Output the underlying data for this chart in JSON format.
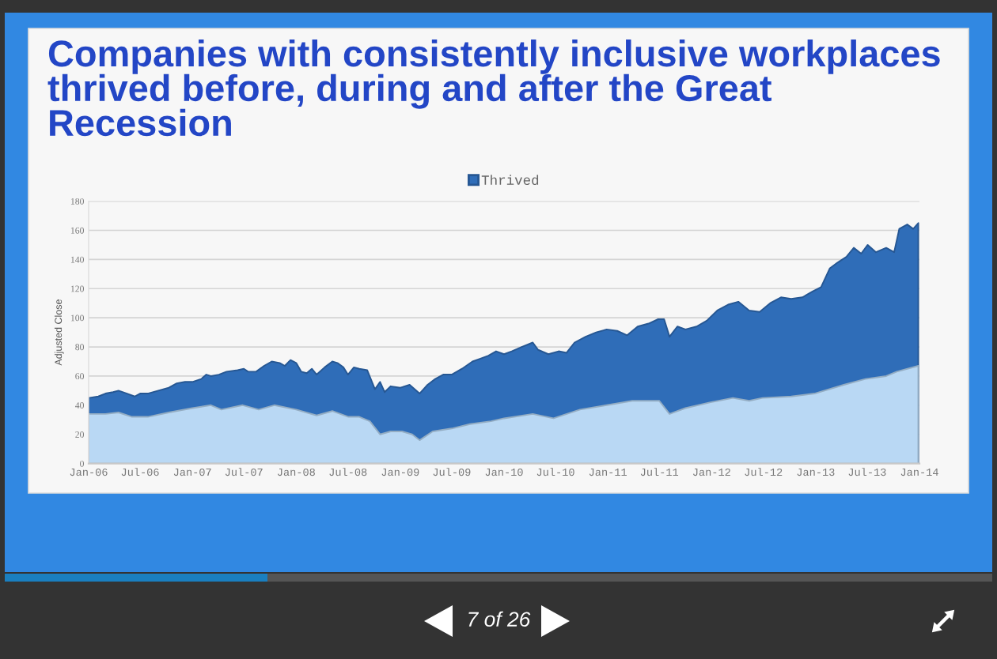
{
  "chart_data": {
    "type": "area",
    "title": "Companies with consistently inclusive workplaces thrived before, during and after the Great Recession",
    "ylabel": "Adjusted Close",
    "series": [
      {
        "name": "Thrived",
        "color": "#2f6db8",
        "x": [
          "2006-01-01",
          "2006-02-04",
          "2006-03-01",
          "2006-03-28",
          "2006-04-16",
          "2006-05-16",
          "2006-06-12",
          "2006-07-01",
          "2006-07-28",
          "2006-09-03",
          "2006-10-10",
          "2006-11-07",
          "2006-12-06",
          "2007-01-01",
          "2007-02-01",
          "2007-02-19",
          "2007-03-07",
          "2007-04-04",
          "2007-05-01",
          "2007-06-09",
          "2007-07-01",
          "2007-07-16",
          "2007-08-13",
          "2007-09-10",
          "2007-10-07",
          "2007-11-04",
          "2007-11-22",
          "2007-12-12",
          "2008-01-01",
          "2008-01-19",
          "2008-02-07",
          "2008-02-25",
          "2008-03-13",
          "2008-04-10",
          "2008-05-07",
          "2008-05-25",
          "2008-06-15",
          "2008-07-01",
          "2008-07-22",
          "2008-08-10",
          "2008-09-07",
          "2008-10-04",
          "2008-10-22",
          "2008-11-07",
          "2008-11-28",
          "2009-01-01",
          "2009-02-03",
          "2009-03-10",
          "2009-04-07",
          "2009-05-04",
          "2009-06-01",
          "2009-07-01",
          "2009-08-06",
          "2009-09-12",
          "2009-10-10",
          "2009-11-07",
          "2009-12-04",
          "2010-01-01",
          "2010-01-28",
          "2010-03-04",
          "2010-04-12",
          "2010-05-01",
          "2010-06-06",
          "2010-07-12",
          "2010-08-09",
          "2010-09-06",
          "2010-10-15",
          "2010-11-21",
          "2010-12-28",
          "2011-02-03",
          "2011-03-10",
          "2011-04-16",
          "2011-05-24",
          "2011-06-27",
          "2011-07-18",
          "2011-08-06",
          "2011-09-03",
          "2011-10-01",
          "2011-11-09",
          "2011-12-15",
          "2012-01-21",
          "2012-02-28",
          "2012-04-04",
          "2012-05-12",
          "2012-06-18",
          "2012-07-25",
          "2012-09-01",
          "2012-10-07",
          "2012-11-15",
          "2012-12-21",
          "2013-01-20",
          "2013-02-20",
          "2013-03-20",
          "2013-04-20",
          "2013-05-15",
          "2013-06-10",
          "2013-07-03",
          "2013-08-01",
          "2013-09-06",
          "2013-10-04",
          "2013-10-22",
          "2013-11-19",
          "2013-12-10",
          "2013-12-28"
        ],
        "values": [
          45,
          46,
          48,
          49,
          50,
          48,
          46,
          48,
          48,
          50,
          52,
          55,
          56,
          56,
          58,
          61,
          60,
          61,
          63,
          64,
          65,
          63,
          63,
          67,
          70,
          69,
          67,
          71,
          69,
          63,
          62,
          65,
          61,
          66,
          70,
          69,
          66,
          61,
          66,
          65,
          64,
          51,
          56,
          49,
          53,
          52,
          54,
          48,
          54,
          58,
          61,
          61,
          65,
          70,
          72,
          74,
          77,
          75,
          77,
          80,
          83,
          78,
          75,
          77,
          76,
          83,
          87,
          90,
          92,
          91,
          88,
          94,
          96,
          99,
          99,
          87,
          94,
          92,
          94,
          98,
          105,
          109,
          111,
          105,
          104,
          110,
          114,
          113,
          114,
          118,
          121,
          134,
          138,
          142,
          148,
          144,
          150,
          145,
          148,
          145,
          161,
          164,
          161,
          165
        ]
      },
      {
        "color": "#b9d8f4",
        "x": [
          "2006-01-01",
          "2006-03-01",
          "2006-04-16",
          "2006-06-03",
          "2006-07-28",
          "2006-10-10",
          "2007-01-01",
          "2007-03-07",
          "2007-04-13",
          "2007-06-27",
          "2007-08-22",
          "2007-10-16",
          "2008-01-01",
          "2008-03-13",
          "2008-05-07",
          "2008-07-03",
          "2008-08-10",
          "2008-09-16",
          "2008-10-22",
          "2008-11-28",
          "2009-01-07",
          "2009-02-12",
          "2009-03-10",
          "2009-04-25",
          "2009-07-01",
          "2009-09-03",
          "2009-11-16",
          "2010-01-01",
          "2010-04-12",
          "2010-06-24",
          "2010-09-25",
          "2010-12-28",
          "2011-03-28",
          "2011-07-01",
          "2011-08-06",
          "2011-10-01",
          "2011-12-28",
          "2012-03-16",
          "2012-05-12",
          "2012-06-28",
          "2012-10-07",
          "2012-12-28",
          "2013-04-10",
          "2013-06-25",
          "2013-09-06",
          "2013-10-13",
          "2013-12-28"
        ],
        "values": [
          34,
          34,
          35,
          32,
          32,
          35,
          38,
          40,
          37,
          40,
          37,
          40,
          37,
          33,
          36,
          32,
          32,
          29,
          20,
          22,
          22,
          20,
          16,
          22,
          24,
          27,
          29,
          31,
          34,
          31,
          37,
          40,
          43,
          43,
          34,
          38,
          42,
          45,
          43,
          45,
          46,
          48,
          54,
          58,
          60,
          63,
          67
        ]
      }
    ],
    "xlim": [
      "2006-01",
      "2014-01"
    ],
    "xticks": [
      {
        "value": "2006-01",
        "label": "Jan-06"
      },
      {
        "value": "2006-07",
        "label": "Jul-06"
      },
      {
        "value": "2007-01",
        "label": "Jan-07"
      },
      {
        "value": "2007-07",
        "label": "Jul-07"
      },
      {
        "value": "2008-01",
        "label": "Jan-08"
      },
      {
        "value": "2008-07",
        "label": "Jul-08"
      },
      {
        "value": "2009-01",
        "label": "Jan-09"
      },
      {
        "value": "2009-07",
        "label": "Jul-09"
      },
      {
        "value": "2010-01",
        "label": "Jan-10"
      },
      {
        "value": "2010-07",
        "label": "Jul-10"
      },
      {
        "value": "2011-01",
        "label": "Jan-11"
      },
      {
        "value": "2011-07",
        "label": "Jul-11"
      },
      {
        "value": "2012-01",
        "label": "Jan-12"
      },
      {
        "value": "2012-07",
        "label": "Jul-12"
      },
      {
        "value": "2013-01",
        "label": "Jan-13"
      },
      {
        "value": "2013-07",
        "label": "Jul-13"
      },
      {
        "value": "2014-01",
        "label": "Jan-14"
      }
    ],
    "ylim": [
      0,
      180
    ],
    "yticks": [
      0,
      20,
      40,
      60,
      80,
      100,
      120,
      140,
      160,
      180
    ],
    "grid": "y",
    "legend": "top",
    "annotations": [
      "7 of 26"
    ]
  }
}
